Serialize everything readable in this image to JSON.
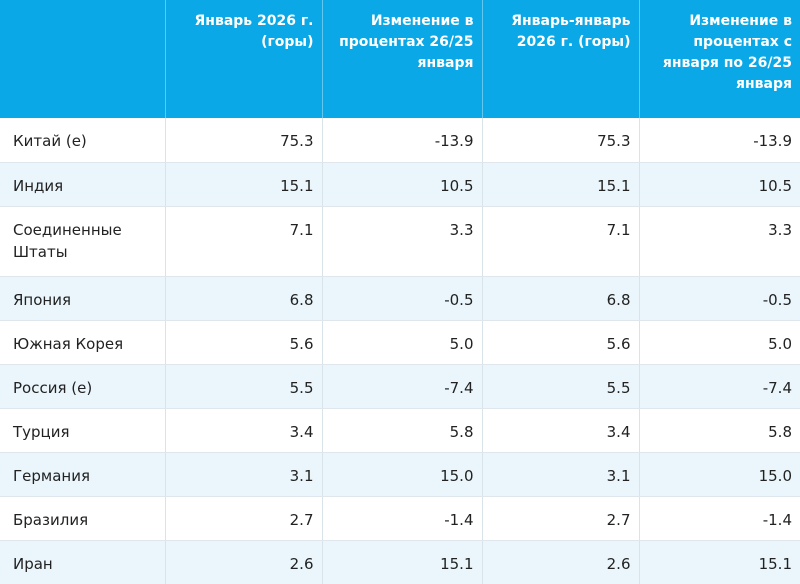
{
  "table": {
    "headers": [
      "",
      "Январь 2026 г. (горы)",
      "Изменение в процентах 26/25 января",
      "Январь-январь 2026 г. (горы)",
      "Изменение в процентах с января по 26/25 января"
    ],
    "rows": [
      {
        "country": "Китай (е)",
        "v1": "75.3",
        "v2": "-13.9",
        "v3": "75.3",
        "v4": "-13.9"
      },
      {
        "country": "Индия",
        "v1": "15.1",
        "v2": "10.5",
        "v3": "15.1",
        "v4": "10.5"
      },
      {
        "country": "Соединенные Штаты",
        "v1": "7.1",
        "v2": "3.3",
        "v3": "7.1",
        "v4": "3.3"
      },
      {
        "country": "Япония",
        "v1": "6.8",
        "v2": "-0.5",
        "v3": "6.8",
        "v4": "-0.5"
      },
      {
        "country": "Южная Корея",
        "v1": "5.6",
        "v2": "5.0",
        "v3": "5.6",
        "v4": "5.0"
      },
      {
        "country": "Россия (е)",
        "v1": "5.5",
        "v2": "-7.4",
        "v3": "5.5",
        "v4": "-7.4"
      },
      {
        "country": "Турция",
        "v1": "3.4",
        "v2": "5.8",
        "v3": "3.4",
        "v4": "5.8"
      },
      {
        "country": "Германия",
        "v1": "3.1",
        "v2": "15.0",
        "v3": "3.1",
        "v4": "15.0"
      },
      {
        "country": "Бразилия",
        "v1": "2.7",
        "v2": "-1.4",
        "v3": "2.7",
        "v4": "-1.4"
      },
      {
        "country": "Иран",
        "v1": "2.6",
        "v2": "15.1",
        "v3": "2.6",
        "v4": "15.1"
      }
    ]
  },
  "colors": {
    "header_bg": "#0aa8e6",
    "header_text": "#ffffff",
    "stripe_bg": "#eaf6fc"
  }
}
